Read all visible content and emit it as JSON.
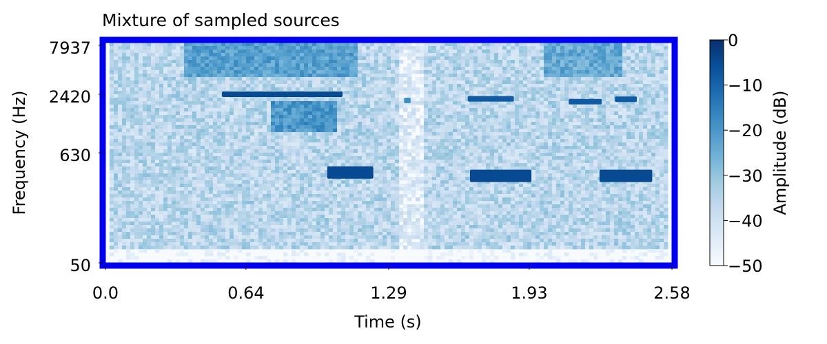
{
  "chart_data": {
    "type": "heatmap",
    "title": "Mixture of sampled sources",
    "xlabel": "Time (s)",
    "ylabel": "Frequency (Hz)",
    "x_ticks": [
      "0.0",
      "0.64",
      "1.29",
      "1.93",
      "2.58"
    ],
    "x_tick_values": [
      0.0,
      0.64,
      1.29,
      1.93,
      2.58
    ],
    "y_ticks": [
      "7937",
      "2420",
      "630",
      "50"
    ],
    "y_tick_values": [
      7937,
      2420,
      630,
      50
    ],
    "xlim": [
      0.0,
      2.58
    ],
    "ylim": [
      50,
      7937
    ],
    "y_scale": "log",
    "colormap": "Blues",
    "frame_color": "#0000ee",
    "colorbar": {
      "label": "Amplitude (dB)",
      "ticks": [
        "0",
        "−10",
        "−20",
        "−30",
        "−40",
        "−50"
      ],
      "tick_values": [
        0,
        -10,
        -20,
        -30,
        -40,
        -50
      ],
      "range": [
        -50,
        0
      ],
      "colors": [
        "#f7fbff",
        "#deebf7",
        "#c6dbef",
        "#9ecae1",
        "#6baed6",
        "#4292c6",
        "#2171b5",
        "#08519c",
        "#08306b"
      ]
    },
    "tones": [
      {
        "t0": 0.53,
        "t1": 1.08,
        "freq": 2420,
        "db": -5
      },
      {
        "t0": 1.36,
        "t1": 1.39,
        "freq": 2100,
        "db": -18
      },
      {
        "t0": 1.65,
        "t1": 1.86,
        "freq": 2180,
        "db": -8
      },
      {
        "t0": 2.11,
        "t1": 2.26,
        "freq": 2040,
        "db": -8
      },
      {
        "t0": 2.32,
        "t1": 2.42,
        "freq": 2160,
        "db": -8
      },
      {
        "t0": 1.01,
        "t1": 1.22,
        "freq": 400,
        "db": -5
      },
      {
        "t0": 1.66,
        "t1": 1.94,
        "freq": 370,
        "db": -5
      },
      {
        "t0": 2.25,
        "t1": 2.49,
        "freq": 370,
        "db": -5
      }
    ],
    "energy_regions": [
      {
        "t0": 0.35,
        "t1": 1.15,
        "f0": 3500,
        "f1": 7937,
        "db": -22
      },
      {
        "t0": 2.0,
        "t1": 2.35,
        "f0": 3500,
        "f1": 7937,
        "db": -24
      },
      {
        "t0": 0.75,
        "t1": 1.05,
        "f0": 1000,
        "f1": 2000,
        "db": -20
      }
    ]
  }
}
